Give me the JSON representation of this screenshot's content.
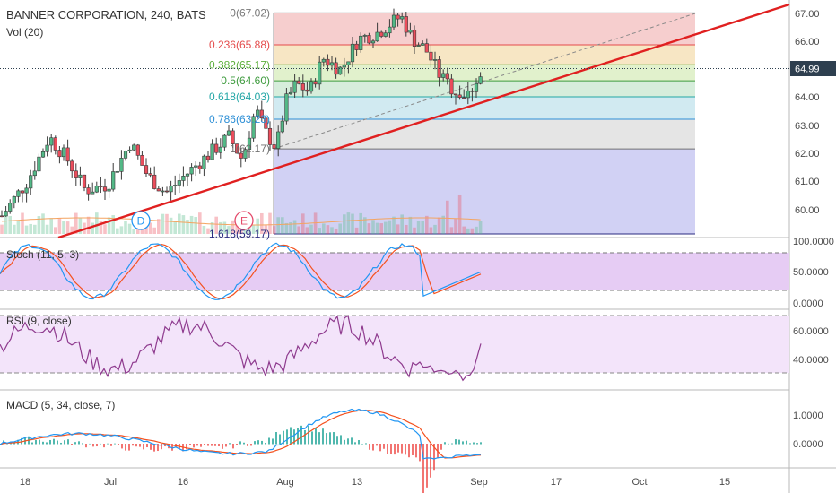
{
  "header": {
    "symbol_line": "BANNER CORPORATION, 240, BATS",
    "volume_label": "Vol (20)"
  },
  "price_axis": {
    "ticks": [
      "67.00",
      "66.00",
      "65.00",
      "64.00",
      "63.00",
      "62.00",
      "61.00",
      "60.00"
    ],
    "last_price": "64.99",
    "last_price_color": "#2e3f4f"
  },
  "fib_levels": [
    {
      "label": "0(67.02)",
      "price": 67.02,
      "color": "#787878",
      "fill": "#f4c6c6"
    },
    {
      "label": "0.236(65.88)",
      "price": 65.88,
      "color": "#e44b4b",
      "fill": "#f6e2ba"
    },
    {
      "label": "0.382(65.17)",
      "price": 65.17,
      "color": "#5daf3c",
      "fill": "#dcefc3"
    },
    {
      "label": "0.5(64.60)",
      "price": 64.6,
      "color": "#3e9b3e",
      "fill": "#cfead5"
    },
    {
      "label": "0.618(64.03)",
      "price": 64.03,
      "color": "#23a6a6",
      "fill": "#c9e6ee"
    },
    {
      "label": "0.786(63.23)",
      "price": 63.23,
      "color": "#2d8fd6",
      "fill": "#e0e0e0"
    },
    {
      "label": "1(62.17)",
      "price": 62.17,
      "color": "#707070",
      "fill": "#c9c9f2"
    },
    {
      "label": "1.618(59.17)",
      "price": 59.17,
      "color": "#2b2b80",
      "fill": ""
    }
  ],
  "event_markers": [
    {
      "letter": "D",
      "kind": "dividend"
    },
    {
      "letter": "E",
      "kind": "earnings"
    }
  ],
  "stoch": {
    "title": "Stoch (11, 5, 3)",
    "ticks": [
      "100.0000",
      "50.0000",
      "0.0000"
    ]
  },
  "rsi": {
    "title": "RSI (9, close)",
    "ticks": [
      "60.0000",
      "40.0000"
    ]
  },
  "macd": {
    "title": "MACD (5, 34, close, 7)",
    "ticks": [
      "1.0000",
      "0.0000"
    ]
  },
  "time_axis": {
    "ticks": [
      "18",
      "Jul",
      "16",
      "Aug",
      "13",
      "Sep",
      "17",
      "Oct",
      "15"
    ]
  },
  "colors": {
    "up": "#53b987",
    "down": "#eb4d5c",
    "trendline": "#e02020",
    "stoch_k": "#2196f3",
    "stoch_d": "#f4511e",
    "rsi": "#8e3a8e",
    "macd": "#2196f3",
    "signal": "#f4511e"
  }
}
